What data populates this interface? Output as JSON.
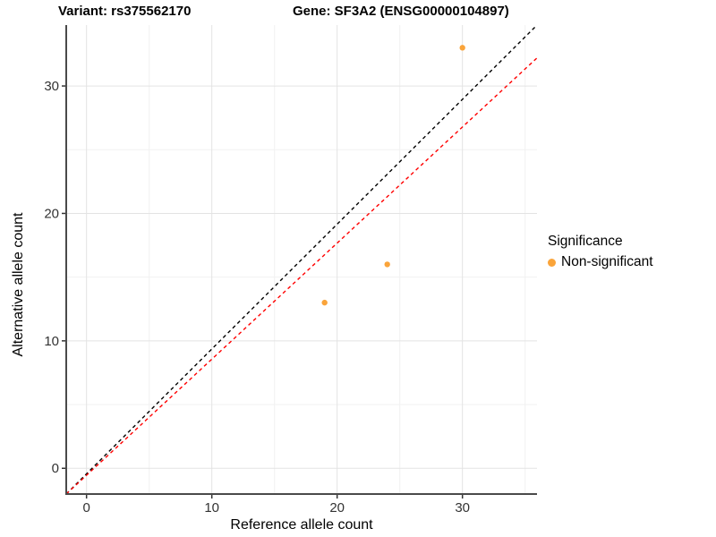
{
  "chart_data": {
    "type": "scatter",
    "title_left": "Variant: rs375562170",
    "title_right": "Gene: SF3A2 (ENSG00000104897)",
    "xlabel": "Reference allele count",
    "ylabel": "Alternative allele count",
    "xlim": [
      -1.62,
      35.95
    ],
    "ylim": [
      -2.02,
      34.78
    ],
    "xticks": [
      0,
      10,
      20,
      30
    ],
    "yticks": [
      0,
      10,
      20,
      30
    ],
    "xticks_minor": [
      5,
      15,
      25,
      35
    ],
    "yticks_minor": [
      5,
      15,
      25
    ],
    "grid": "major+minor",
    "legend": {
      "title": "Significance",
      "position": "right",
      "items": [
        {
          "label": "Non-significant",
          "color": "#FAA43A"
        }
      ]
    },
    "series": [
      {
        "name": "Non-significant",
        "color": "#FAA43A",
        "point_radius": 3.2,
        "points": [
          [
            30,
            33
          ],
          [
            24,
            16
          ],
          [
            19,
            13
          ]
        ]
      }
    ],
    "ref_lines": [
      {
        "name": "identity-line",
        "color": "#000000",
        "style": "dashed",
        "x1": -1.62,
        "y1": -2.02,
        "x2": 35.95,
        "y2": 34.78
      },
      {
        "name": "expected-ratio-line",
        "color": "#FF0000",
        "style": "dashed",
        "x1": -1.62,
        "y1": -2.02,
        "x2": 35.95,
        "y2": 32.2
      }
    ],
    "colors": {
      "grid_major": "#E3E3E3",
      "grid_minor": "#F1F1F1",
      "axis_line": "#4A4A4A",
      "tick": "#333333",
      "tick_label": "#333333",
      "point": "#FAA43A"
    }
  }
}
